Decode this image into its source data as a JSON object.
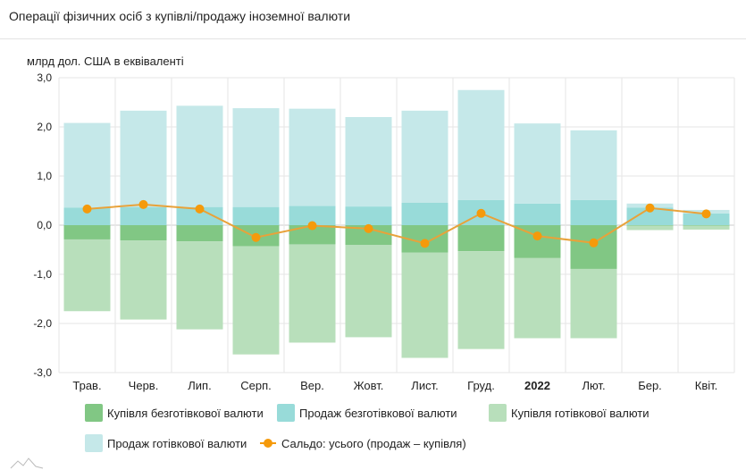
{
  "title": "Операції фізичних осіб з купівлі/продажу іноземної валюти",
  "chart_data": {
    "type": "bar",
    "stacked": true,
    "ylabel": "млрд дол. США в еквіваленті",
    "ylim": [
      -3.0,
      3.0
    ],
    "yticks": [
      "3,0",
      "2,0",
      "1,0",
      "0,0",
      "-1,0",
      "-2,0",
      "-3,0"
    ],
    "ytick_values": [
      3,
      2,
      1,
      0,
      -1,
      -2,
      -3
    ],
    "grid": true,
    "legend_position": "bottom",
    "categories": [
      "Трав.",
      "Черв.",
      "Лип.",
      "Серп.",
      "Вер.",
      "Жовт.",
      "Лист.",
      "Груд.",
      "2022",
      "Лют.",
      "Бер.",
      "Квіт."
    ],
    "bold_categories": [
      "2022"
    ],
    "series": [
      {
        "name": "Купівля безготівкової валюти",
        "color": "#81c784",
        "type": "bar",
        "values": [
          -0.29,
          -0.31,
          -0.33,
          -0.43,
          -0.39,
          -0.4,
          -0.56,
          -0.53,
          -0.67,
          -0.89,
          -0.01,
          -0.01
        ]
      },
      {
        "name": "Продаж безготівкової валюти",
        "color": "#98dbd9",
        "type": "bar",
        "values": [
          0.36,
          0.37,
          0.37,
          0.37,
          0.39,
          0.38,
          0.46,
          0.51,
          0.44,
          0.51,
          0.36,
          0.24
        ]
      },
      {
        "name": "Купівля готівкової валюти",
        "color": "#b8dfbb",
        "type": "bar",
        "values": [
          -1.46,
          -1.61,
          -1.79,
          -2.2,
          -2.0,
          -1.88,
          -2.14,
          -1.99,
          -1.63,
          -1.41,
          -0.09,
          -0.08
        ]
      },
      {
        "name": "Продаж готівкової валюти",
        "color": "#c5e8e9",
        "type": "bar",
        "values": [
          1.72,
          1.96,
          2.06,
          2.01,
          1.98,
          1.82,
          1.87,
          2.24,
          1.63,
          1.42,
          0.08,
          0.07
        ]
      },
      {
        "name": "Сальдо: усього (продаж – купівля)",
        "color": "#f59a0b",
        "type": "line",
        "values": [
          0.33,
          0.42,
          0.33,
          -0.25,
          -0.01,
          -0.07,
          -0.37,
          0.24,
          -0.22,
          -0.36,
          0.35,
          0.23
        ]
      }
    ]
  }
}
